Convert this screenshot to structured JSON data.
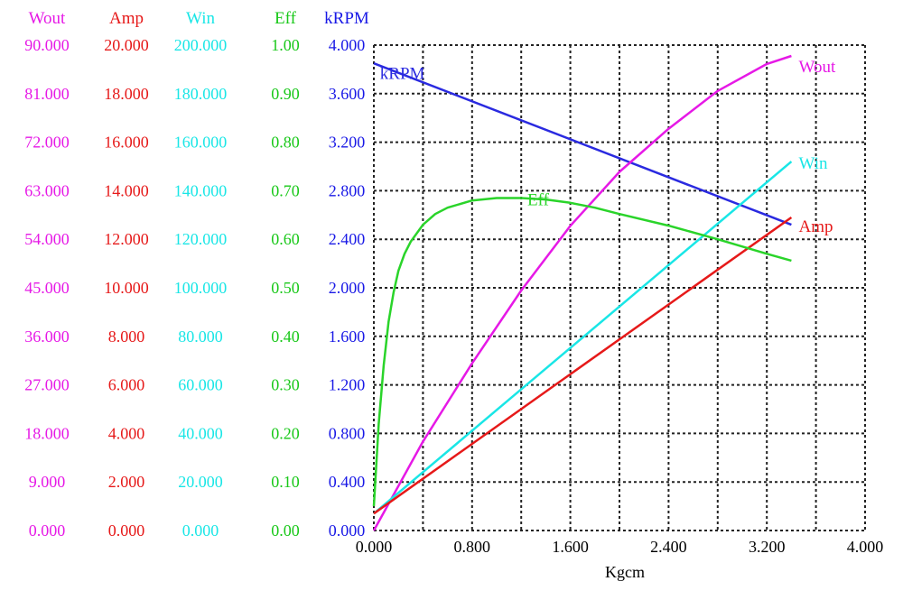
{
  "chart_data": {
    "type": "line",
    "xlabel": "Kgcm",
    "xlim": [
      0,
      4.0
    ],
    "x_ticks": [
      "0.000",
      "0.800",
      "1.600",
      "2.400",
      "3.200",
      "4.000"
    ],
    "grid": true,
    "axes": [
      {
        "key": "wout",
        "header": "Wout",
        "color": "#e619e6",
        "range": [
          0,
          90
        ],
        "ticks": [
          "0.000",
          "9.000",
          "18.000",
          "27.000",
          "36.000",
          "45.000",
          "54.000",
          "63.000",
          "72.000",
          "81.000",
          "90.000"
        ]
      },
      {
        "key": "amp",
        "header": "Amp",
        "color": "#e61919",
        "range": [
          0,
          20
        ],
        "ticks": [
          "0.000",
          "2.000",
          "4.000",
          "6.000",
          "8.000",
          "10.000",
          "12.000",
          "14.000",
          "16.000",
          "18.000",
          "20.000"
        ]
      },
      {
        "key": "win",
        "header": "Win",
        "color": "#19e6e6",
        "range": [
          0,
          200
        ],
        "ticks": [
          "0.000",
          "20.000",
          "40.000",
          "60.000",
          "80.000",
          "100.000",
          "120.000",
          "140.000",
          "160.000",
          "180.000",
          "200.000"
        ]
      },
      {
        "key": "eff",
        "header": "Eff",
        "color": "#19c819",
        "range": [
          0,
          1
        ],
        "ticks": [
          "0.00",
          "0.10",
          "0.20",
          "0.30",
          "0.40",
          "0.50",
          "0.60",
          "0.70",
          "0.80",
          "0.90",
          "1.00"
        ]
      },
      {
        "key": "krpm",
        "header": "kRPM",
        "color": "#1919e6",
        "range": [
          0,
          4.0
        ],
        "ticks": [
          "0.000",
          "0.400",
          "0.800",
          "1.200",
          "1.600",
          "2.000",
          "2.400",
          "2.800",
          "3.200",
          "3.600",
          "4.000"
        ]
      }
    ],
    "series": [
      {
        "name": "kRPM",
        "axis": "krpm",
        "color": "#2a2ae0",
        "x": [
          0.0,
          3.4
        ],
        "y": [
          3.85,
          2.52
        ]
      },
      {
        "name": "Wout",
        "axis": "wout",
        "color": "#e619e6",
        "x": [
          0.0,
          0.4,
          0.8,
          1.2,
          1.6,
          2.0,
          2.4,
          2.8,
          3.2,
          3.4
        ],
        "y": [
          0.0,
          16.5,
          31.0,
          44.5,
          56.5,
          66.5,
          74.5,
          81.5,
          86.5,
          88.0
        ]
      },
      {
        "name": "Win",
        "axis": "win",
        "color": "#19e6e6",
        "x": [
          0.0,
          3.4
        ],
        "y": [
          7.0,
          152.0
        ]
      },
      {
        "name": "Amp",
        "axis": "amp",
        "color": "#e61919",
        "x": [
          0.0,
          3.4
        ],
        "y": [
          0.7,
          12.9
        ]
      },
      {
        "name": "Eff",
        "axis": "eff",
        "color": "#2ad42a",
        "x": [
          0.0,
          0.04,
          0.08,
          0.12,
          0.16,
          0.2,
          0.25,
          0.3,
          0.4,
          0.5,
          0.6,
          0.8,
          1.0,
          1.2,
          1.4,
          1.6,
          1.8,
          2.0,
          2.4,
          2.8,
          3.2,
          3.4
        ],
        "y": [
          0.05,
          0.22,
          0.34,
          0.43,
          0.49,
          0.535,
          0.57,
          0.595,
          0.63,
          0.652,
          0.665,
          0.68,
          0.685,
          0.685,
          0.682,
          0.675,
          0.665,
          0.652,
          0.628,
          0.6,
          0.57,
          0.556
        ]
      }
    ],
    "series_labels": [
      {
        "text": "kRPM",
        "color": "#2a2ae0",
        "x": 0.05,
        "y_axis": "krpm",
        "y": 3.72
      },
      {
        "text": "Wout",
        "color": "#e619e6",
        "x": 3.46,
        "y_axis": "wout",
        "y": 85.0
      },
      {
        "text": "Win",
        "color": "#19e6e6",
        "x": 3.46,
        "y_axis": "win",
        "y": 149.0
      },
      {
        "text": "Amp",
        "color": "#e61919",
        "x": 3.46,
        "y_axis": "amp",
        "y": 12.3
      },
      {
        "text": "Eff",
        "color": "#2ad42a",
        "x": 1.25,
        "y_axis": "eff",
        "y": 0.67
      }
    ]
  }
}
